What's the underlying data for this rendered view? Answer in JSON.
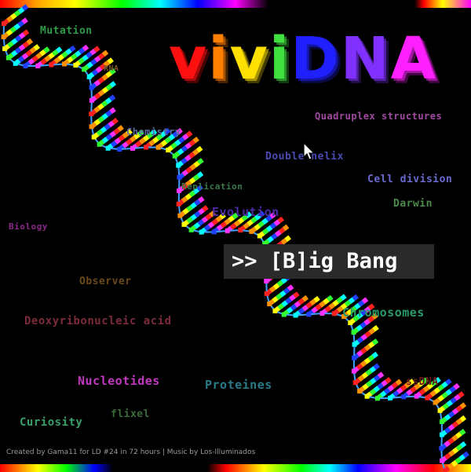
{
  "logo": {
    "part1": "vivi",
    "part2": "DNA"
  },
  "menu": {
    "prompt": ">>",
    "label": "[B]ig Bang"
  },
  "credits": "Created by Gama11 for LD #24 in 72 hours | Music by Los-Illuminados",
  "words": [
    {
      "text": "Mutation",
      "color": "#2e9a4a",
      "size": 13
    },
    {
      "text": "RNA",
      "color": "#7a5a2a",
      "size": 10
    },
    {
      "text": "Quadruplex structures",
      "color": "#a04aa0",
      "size": 12
    },
    {
      "text": "Chemistry",
      "color": "#5a6aa0",
      "size": 12
    },
    {
      "text": "Double helix",
      "color": "#4a4ab0",
      "size": 13
    },
    {
      "text": "Cell division",
      "color": "#6a6ad0",
      "size": 13
    },
    {
      "text": "Replication",
      "color": "#3a7a4a",
      "size": 11
    },
    {
      "text": "Darwin",
      "color": "#4a8a4a",
      "size": 13
    },
    {
      "text": "Evolution",
      "color": "#4a2aa0",
      "size": 15
    },
    {
      "text": "Biology",
      "color": "#8a2a8a",
      "size": 11
    },
    {
      "text": "Observer",
      "color": "#6a4a1a",
      "size": 13
    },
    {
      "text": "Chromosomes",
      "color": "#2a9a6a",
      "size": 15
    },
    {
      "text": "Deoxyribonucleic acid",
      "color": "#7a2a3a",
      "size": 14
    },
    {
      "text": "Nucleotides",
      "color": "#c03ac0",
      "size": 15
    },
    {
      "text": "Proteines",
      "color": "#2a7a8a",
      "size": 15
    },
    {
      "text": "ssDNA",
      "color": "#6a1a1a",
      "size": 13
    },
    {
      "text": "Curiosity",
      "color": "#3aa06a",
      "size": 14
    },
    {
      "text": "flixel",
      "color": "#3a6a3a",
      "size": 13
    }
  ]
}
